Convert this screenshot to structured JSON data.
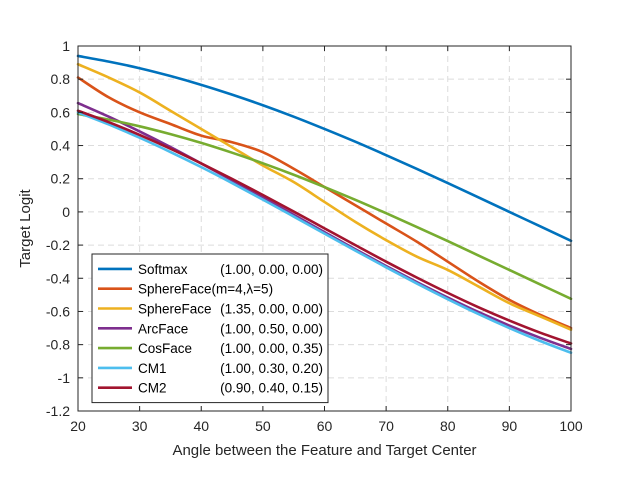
{
  "chart_data": {
    "type": "line",
    "title": "",
    "xlabel": "Angle between the Feature and Target Center",
    "ylabel": "Target Logit",
    "xlim": [
      20,
      100
    ],
    "ylim": [
      -1.2,
      1
    ],
    "xticks": [
      20,
      30,
      40,
      50,
      60,
      70,
      80,
      90,
      100
    ],
    "xtick_labels": [
      "20",
      "30",
      "40",
      "50",
      "60",
      "70",
      "80",
      "90",
      "100"
    ],
    "yticks": [
      -1.2,
      -1,
      -0.8,
      -0.6,
      -0.4,
      -0.2,
      0,
      0.2,
      0.4,
      0.6,
      0.8,
      1
    ],
    "ytick_labels": [
      "-1.2",
      "-1",
      "-0.8",
      "-0.6",
      "-0.4",
      "-0.2",
      "0",
      "0.2",
      "0.4",
      "0.6",
      "0.8",
      "1"
    ],
    "grid": true,
    "legend_position": "bottom-left",
    "x": [
      20,
      25,
      30,
      35,
      40,
      45,
      50,
      55,
      60,
      65,
      70,
      75,
      80,
      85,
      90,
      95,
      100
    ],
    "series": [
      {
        "name": "Softmax",
        "params": "(1.00, 0.00, 0.00)",
        "color": "#0072BD",
        "values": [
          0.94,
          0.906,
          0.866,
          0.819,
          0.766,
          0.707,
          0.643,
          0.574,
          0.5,
          0.423,
          0.342,
          0.259,
          0.174,
          0.087,
          0.0,
          -0.087,
          -0.174
        ]
      },
      {
        "name": "SphereFace(m=4,λ=5)",
        "params": "",
        "color": "#D95319",
        "values": [
          0.81,
          0.69,
          0.6,
          0.53,
          0.46,
          0.42,
          0.36,
          0.26,
          0.15,
          0.04,
          -0.07,
          -0.18,
          -0.3,
          -0.42,
          -0.53,
          -0.62,
          -0.7
        ]
      },
      {
        "name": "SphereFace",
        "params": "(1.35, 0.00, 0.00)",
        "color": "#EDB120",
        "values": [
          0.89,
          0.81,
          0.72,
          0.61,
          0.5,
          0.39,
          0.28,
          0.18,
          0.06,
          -0.06,
          -0.17,
          -0.27,
          -0.35,
          -0.45,
          -0.55,
          -0.63,
          -0.71
        ]
      },
      {
        "name": "ArcFace",
        "params": "(1.00, 0.50, 0.00)",
        "color": "#7E2F8E",
        "values": [
          0.656,
          0.574,
          0.485,
          0.391,
          0.292,
          0.191,
          0.087,
          -0.017,
          -0.122,
          -0.225,
          -0.326,
          -0.423,
          -0.516,
          -0.604,
          -0.685,
          -0.759,
          -0.826
        ]
      },
      {
        "name": "CosFace",
        "params": "(1.00, 0.00, 0.35)",
        "color": "#77AC30",
        "values": [
          0.59,
          0.556,
          0.516,
          0.469,
          0.416,
          0.357,
          0.293,
          0.224,
          0.15,
          0.073,
          -0.008,
          -0.091,
          -0.176,
          -0.263,
          -0.35,
          -0.437,
          -0.524
        ]
      },
      {
        "name": "CM1",
        "params": "(1.00, 0.30, 0.20)",
        "color": "#4DBEEE",
        "values": [
          0.6,
          0.527,
          0.447,
          0.361,
          0.27,
          0.174,
          0.074,
          -0.028,
          -0.131,
          -0.233,
          -0.334,
          -0.432,
          -0.526,
          -0.616,
          -0.7,
          -0.778,
          -0.849
        ]
      },
      {
        "name": "CM2",
        "params": "(0.90, 0.40, 0.15)",
        "color": "#A2142F",
        "values": [
          0.61,
          0.541,
          0.464,
          0.381,
          0.292,
          0.199,
          0.102,
          0.002,
          -0.099,
          -0.2,
          -0.3,
          -0.396,
          -0.488,
          -0.575,
          -0.655,
          -0.728,
          -0.793
        ]
      }
    ]
  }
}
